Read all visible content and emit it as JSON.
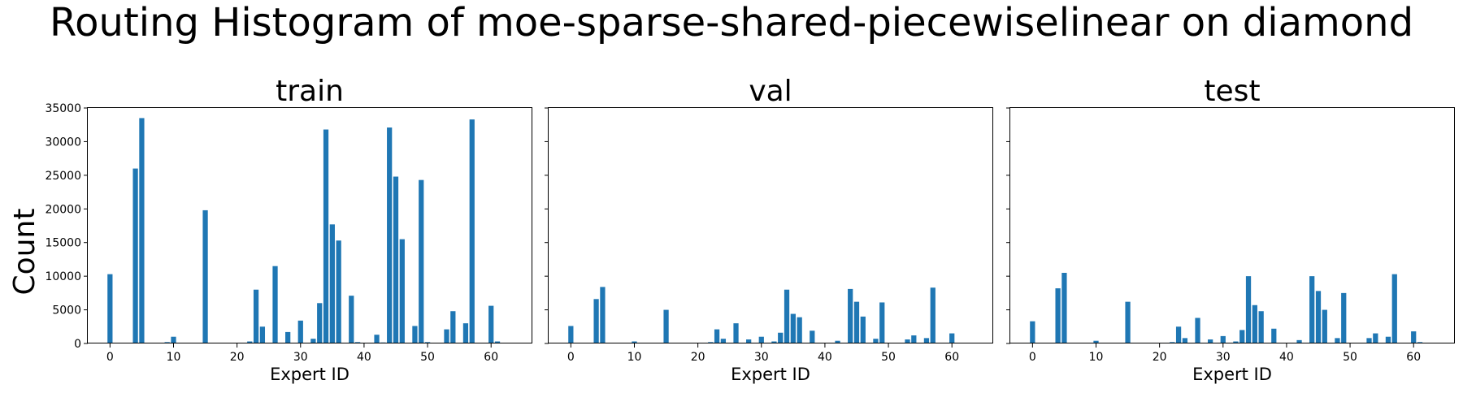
{
  "figure": {
    "title": "Routing Histogram of moe-sparse-shared-piecewiselinear on diamond",
    "ylabel": "Count"
  },
  "colors": {
    "bar": "#1f77b4",
    "axis": "#000000"
  },
  "chart_data": [
    {
      "type": "bar",
      "title": "train",
      "xlabel": "Expert ID",
      "ylabel": "Count",
      "xlim": [
        -3.5,
        66.5
      ],
      "ylim": [
        0,
        35000
      ],
      "xticks": [
        0,
        10,
        20,
        30,
        40,
        50,
        60
      ],
      "yticks": [
        0,
        5000,
        10000,
        15000,
        20000,
        25000,
        30000,
        35000
      ],
      "x": [
        0,
        4,
        5,
        9,
        10,
        15,
        22,
        23,
        24,
        26,
        28,
        30,
        32,
        33,
        34,
        35,
        36,
        38,
        39,
        42,
        43,
        44,
        45,
        46,
        48,
        49,
        50,
        53,
        54,
        56,
        57,
        60,
        61
      ],
      "values": [
        10300,
        26000,
        33500,
        200,
        1000,
        19800,
        300,
        8000,
        2500,
        11500,
        1700,
        3400,
        700,
        6000,
        31800,
        17700,
        15300,
        7100,
        200,
        1300,
        150,
        32100,
        24800,
        15500,
        2600,
        24300,
        200,
        2100,
        4800,
        3000,
        33300,
        5600,
        300
      ]
    },
    {
      "type": "bar",
      "title": "val",
      "xlabel": "Expert ID",
      "ylabel": "",
      "xlim": [
        -3.5,
        66.5
      ],
      "ylim": [
        0,
        35000
      ],
      "xticks": [
        0,
        10,
        20,
        30,
        40,
        50,
        60
      ],
      "yticks": [
        0,
        5000,
        10000,
        15000,
        20000,
        25000,
        30000,
        35000
      ],
      "x": [
        0,
        4,
        5,
        10,
        15,
        22,
        23,
        24,
        26,
        28,
        30,
        32,
        33,
        34,
        35,
        36,
        38,
        42,
        44,
        45,
        46,
        48,
        49,
        53,
        54,
        56,
        57,
        60,
        61
      ],
      "values": [
        2600,
        6600,
        8400,
        300,
        5000,
        200,
        2100,
        700,
        3000,
        600,
        1000,
        300,
        1600,
        8000,
        4400,
        3900,
        1900,
        400,
        8100,
        6200,
        4000,
        700,
        6100,
        600,
        1200,
        800,
        8300,
        1500,
        100
      ]
    },
    {
      "type": "bar",
      "title": "test",
      "xlabel": "Expert ID",
      "ylabel": "",
      "xlim": [
        -3.5,
        66.5
      ],
      "ylim": [
        0,
        35000
      ],
      "xticks": [
        0,
        10,
        20,
        30,
        40,
        50,
        60
      ],
      "yticks": [
        0,
        5000,
        10000,
        15000,
        20000,
        25000,
        30000,
        35000
      ],
      "x": [
        0,
        4,
        5,
        10,
        15,
        22,
        23,
        24,
        26,
        28,
        30,
        32,
        33,
        34,
        35,
        36,
        38,
        42,
        44,
        45,
        46,
        48,
        49,
        50,
        53,
        54,
        56,
        57,
        60,
        61
      ],
      "values": [
        3300,
        8200,
        10500,
        400,
        6200,
        200,
        2500,
        800,
        3800,
        600,
        1100,
        300,
        2000,
        10000,
        5700,
        4800,
        2200,
        500,
        10000,
        7800,
        5000,
        800,
        7500,
        100,
        800,
        1500,
        1000,
        10300,
        1800,
        200
      ]
    }
  ]
}
